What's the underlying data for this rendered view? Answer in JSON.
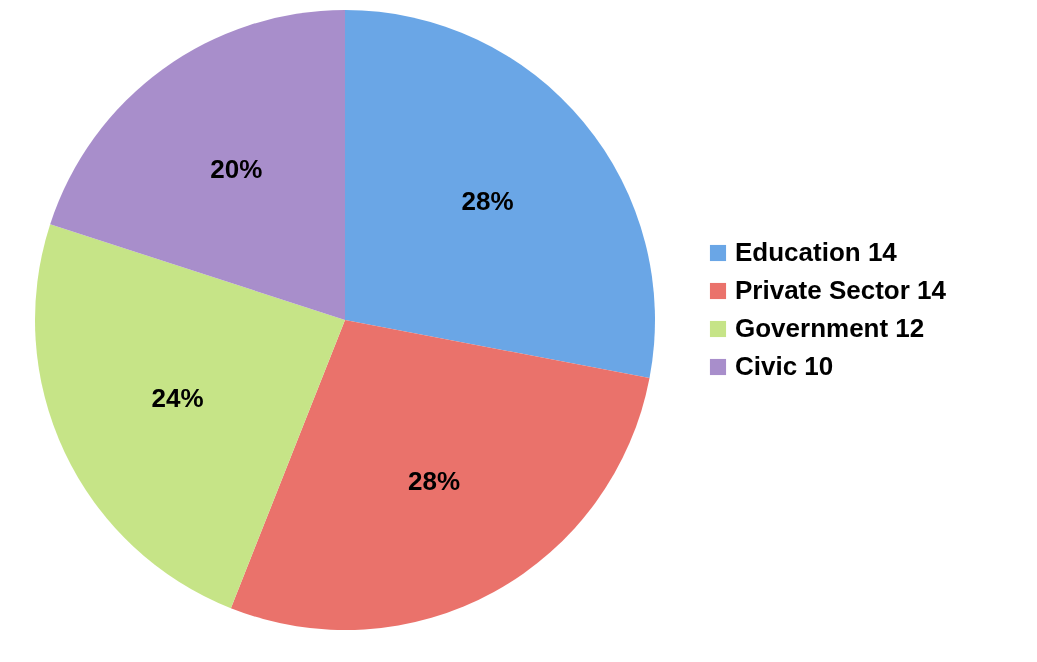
{
  "chart_data": {
    "type": "pie",
    "categories": [
      "Education 14",
      "Private Sector 14",
      "Government 12",
      "Civic 10"
    ],
    "values": [
      28,
      28,
      24,
      20
    ],
    "colors": [
      "#6aa6e6",
      "#ea726b",
      "#c6e487",
      "#a88ecb"
    ],
    "value_labels": [
      "28%",
      "28%",
      "24%",
      "20%"
    ],
    "legend": "right"
  }
}
